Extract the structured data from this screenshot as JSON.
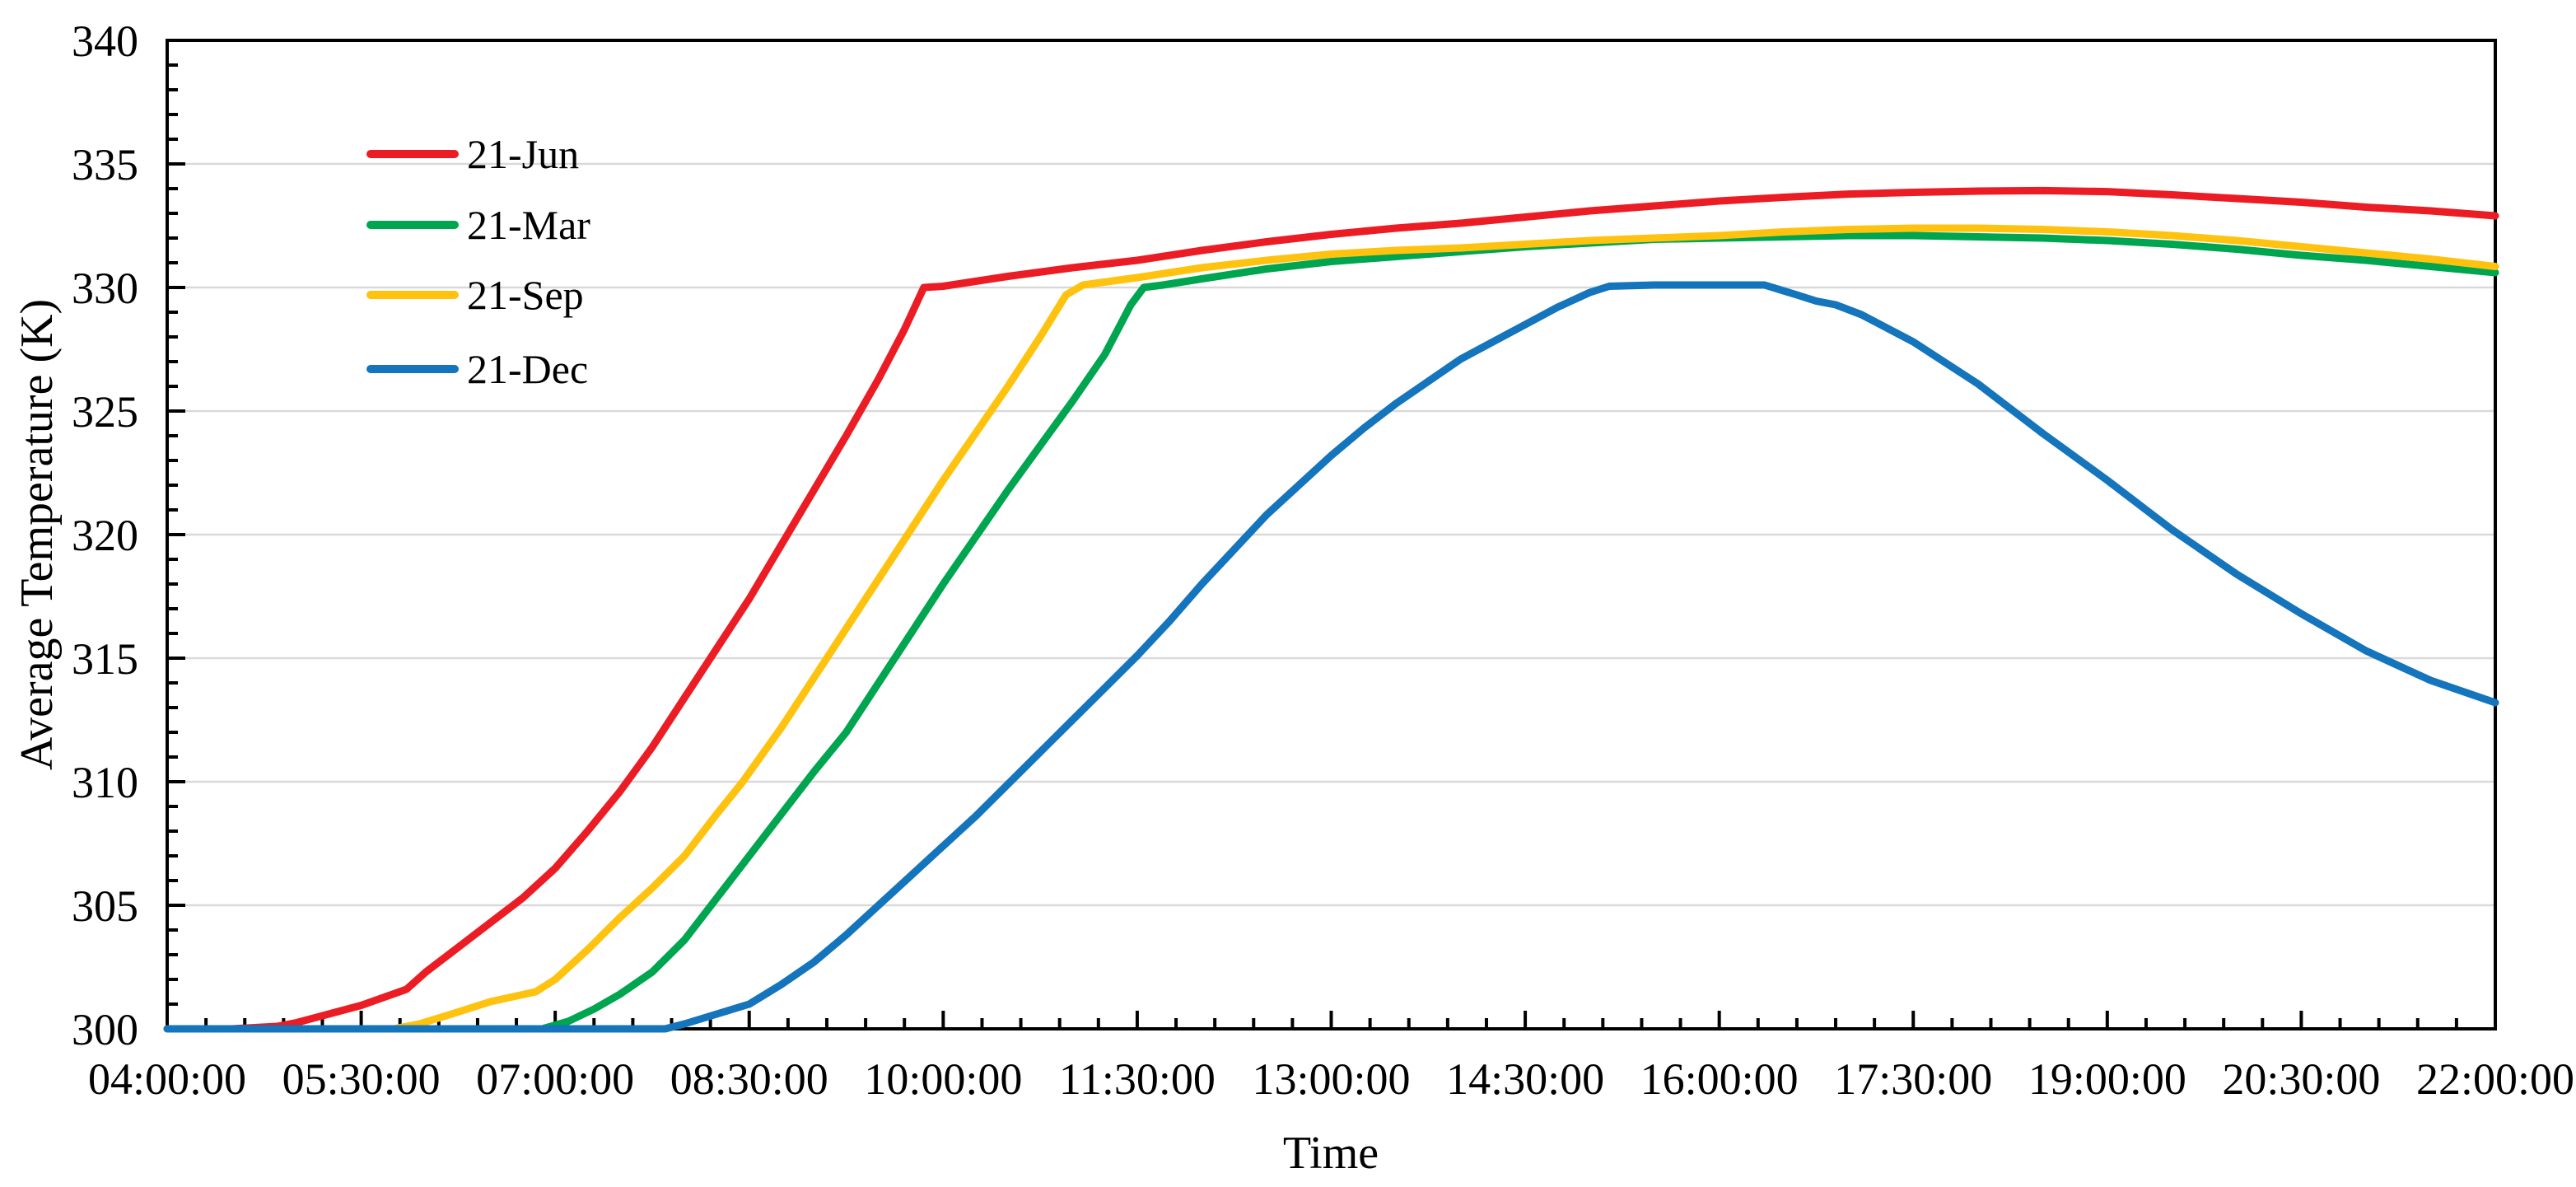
{
  "chart_data": {
    "type": "line",
    "title": "",
    "xlabel": "Time",
    "ylabel": "Average Temperature (K)",
    "grid": "horizontal-major-only",
    "legend_position": "top-left-inside",
    "frame_color": "#000000",
    "gridline_color": "#d9d9d9",
    "x_axis": {
      "unit": "time-of-day",
      "start_hour": 4,
      "end_hour": 22,
      "major_tick_interval_hours": 1.5,
      "minor_ticks_per_major": 5,
      "tick_labels": [
        "04:00:00",
        "05:30:00",
        "07:00:00",
        "08:30:00",
        "10:00:00",
        "11:30:00",
        "13:00:00",
        "14:30:00",
        "16:00:00",
        "17:30:00",
        "19:00:00",
        "20:30:00",
        "22:00:00"
      ]
    },
    "y_axis": {
      "min": 300,
      "max": 340,
      "major_step": 5,
      "minor_step": 1,
      "tick_labels": [
        "300",
        "305",
        "310",
        "315",
        "320",
        "325",
        "330",
        "335",
        "340"
      ]
    },
    "series": [
      {
        "name": "21-Jun",
        "color": "#ec1c24",
        "points": [
          [
            4.0,
            300
          ],
          [
            4.5,
            300
          ],
          [
            4.85,
            300.1
          ],
          [
            5.0,
            300.25
          ],
          [
            5.25,
            300.6
          ],
          [
            5.5,
            300.95
          ],
          [
            5.85,
            301.6
          ],
          [
            6.0,
            302.3
          ],
          [
            6.25,
            303.3
          ],
          [
            6.5,
            304.3
          ],
          [
            6.75,
            305.3
          ],
          [
            7.0,
            306.5
          ],
          [
            7.25,
            308.0
          ],
          [
            7.5,
            309.6
          ],
          [
            7.75,
            311.4
          ],
          [
            8.0,
            313.4
          ],
          [
            8.25,
            315.4
          ],
          [
            8.5,
            317.4
          ],
          [
            8.75,
            319.6
          ],
          [
            9.0,
            321.8
          ],
          [
            9.25,
            324.0
          ],
          [
            9.5,
            326.3
          ],
          [
            9.7,
            328.3
          ],
          [
            9.85,
            330.0
          ],
          [
            10.0,
            330.05
          ],
          [
            10.5,
            330.45
          ],
          [
            11.0,
            330.8
          ],
          [
            11.5,
            331.1
          ],
          [
            12.0,
            331.5
          ],
          [
            12.5,
            331.85
          ],
          [
            13.0,
            332.15
          ],
          [
            13.5,
            332.4
          ],
          [
            14.0,
            332.6
          ],
          [
            14.5,
            332.85
          ],
          [
            15.0,
            333.1
          ],
          [
            15.5,
            333.3
          ],
          [
            16.0,
            333.5
          ],
          [
            16.5,
            333.65
          ],
          [
            17.0,
            333.78
          ],
          [
            17.5,
            333.85
          ],
          [
            18.0,
            333.9
          ],
          [
            18.5,
            333.92
          ],
          [
            19.0,
            333.88
          ],
          [
            19.5,
            333.75
          ],
          [
            20.0,
            333.6
          ],
          [
            20.5,
            333.45
          ],
          [
            21.0,
            333.25
          ],
          [
            21.5,
            333.1
          ],
          [
            22.0,
            332.9
          ]
        ]
      },
      {
        "name": "21-Mar",
        "color": "#00a550",
        "points": [
          [
            4.0,
            300
          ],
          [
            6.9,
            300
          ],
          [
            7.1,
            300.3
          ],
          [
            7.3,
            300.8
          ],
          [
            7.5,
            301.4
          ],
          [
            7.75,
            302.3
          ],
          [
            8.0,
            303.6
          ],
          [
            8.25,
            305.3
          ],
          [
            8.5,
            307.0
          ],
          [
            8.75,
            308.7
          ],
          [
            9.0,
            310.4
          ],
          [
            9.25,
            312.0
          ],
          [
            9.5,
            314.0
          ],
          [
            9.75,
            316.0
          ],
          [
            10.0,
            318.0
          ],
          [
            10.25,
            319.9
          ],
          [
            10.5,
            321.8
          ],
          [
            10.75,
            323.6
          ],
          [
            11.0,
            325.4
          ],
          [
            11.25,
            327.3
          ],
          [
            11.45,
            329.3
          ],
          [
            11.55,
            330.0
          ],
          [
            11.7,
            330.1
          ],
          [
            12.0,
            330.35
          ],
          [
            12.5,
            330.75
          ],
          [
            13.0,
            331.05
          ],
          [
            13.5,
            331.25
          ],
          [
            14.0,
            331.45
          ],
          [
            14.5,
            331.65
          ],
          [
            15.0,
            331.8
          ],
          [
            15.5,
            331.95
          ],
          [
            16.0,
            332.0
          ],
          [
            16.5,
            332.05
          ],
          [
            17.0,
            332.1
          ],
          [
            17.5,
            332.1
          ],
          [
            18.0,
            332.05
          ],
          [
            18.5,
            332.0
          ],
          [
            19.0,
            331.9
          ],
          [
            19.5,
            331.75
          ],
          [
            20.0,
            331.55
          ],
          [
            20.5,
            331.3
          ],
          [
            21.0,
            331.1
          ],
          [
            21.5,
            330.85
          ],
          [
            22.0,
            330.6
          ]
        ]
      },
      {
        "name": "21-Sep",
        "color": "#ffc20e",
        "points": [
          [
            4.0,
            300
          ],
          [
            5.75,
            300
          ],
          [
            5.95,
            300.2
          ],
          [
            6.2,
            300.6
          ],
          [
            6.5,
            301.1
          ],
          [
            6.85,
            301.5
          ],
          [
            7.0,
            302.0
          ],
          [
            7.25,
            303.2
          ],
          [
            7.5,
            304.5
          ],
          [
            7.75,
            305.7
          ],
          [
            8.0,
            307.0
          ],
          [
            8.25,
            308.7
          ],
          [
            8.45,
            310.0
          ],
          [
            8.75,
            312.2
          ],
          [
            9.0,
            314.2
          ],
          [
            9.25,
            316.2
          ],
          [
            9.5,
            318.2
          ],
          [
            9.75,
            320.2
          ],
          [
            10.0,
            322.2
          ],
          [
            10.25,
            324.1
          ],
          [
            10.5,
            326.0
          ],
          [
            10.75,
            328.0
          ],
          [
            10.95,
            329.7
          ],
          [
            11.08,
            330.1
          ],
          [
            11.5,
            330.4
          ],
          [
            12.0,
            330.8
          ],
          [
            12.5,
            331.1
          ],
          [
            13.0,
            331.35
          ],
          [
            13.5,
            331.5
          ],
          [
            14.0,
            331.6
          ],
          [
            14.5,
            331.75
          ],
          [
            15.0,
            331.9
          ],
          [
            15.5,
            332.0
          ],
          [
            16.0,
            332.1
          ],
          [
            16.5,
            332.25
          ],
          [
            17.0,
            332.35
          ],
          [
            17.5,
            332.4
          ],
          [
            18.0,
            332.4
          ],
          [
            18.5,
            332.35
          ],
          [
            19.0,
            332.25
          ],
          [
            19.5,
            332.1
          ],
          [
            20.0,
            331.9
          ],
          [
            20.5,
            331.65
          ],
          [
            21.0,
            331.4
          ],
          [
            21.5,
            331.15
          ],
          [
            22.0,
            330.85
          ]
        ]
      },
      {
        "name": "21-Dec",
        "color": "#1474bc",
        "points": [
          [
            4.0,
            300
          ],
          [
            7.85,
            300
          ],
          [
            8.0,
            300.2
          ],
          [
            8.25,
            300.6
          ],
          [
            8.5,
            301.0
          ],
          [
            8.75,
            301.8
          ],
          [
            9.0,
            302.7
          ],
          [
            9.25,
            303.8
          ],
          [
            9.5,
            305.0
          ],
          [
            9.75,
            306.2
          ],
          [
            10.0,
            307.4
          ],
          [
            10.25,
            308.6
          ],
          [
            10.5,
            309.9
          ],
          [
            10.75,
            311.2
          ],
          [
            11.0,
            312.5
          ],
          [
            11.25,
            313.8
          ],
          [
            11.5,
            315.1
          ],
          [
            11.75,
            316.5
          ],
          [
            12.0,
            318.0
          ],
          [
            12.25,
            319.4
          ],
          [
            12.5,
            320.8
          ],
          [
            12.75,
            322.0
          ],
          [
            13.0,
            323.2
          ],
          [
            13.25,
            324.3
          ],
          [
            13.5,
            325.3
          ],
          [
            13.75,
            326.2
          ],
          [
            14.0,
            327.1
          ],
          [
            14.25,
            327.8
          ],
          [
            14.5,
            328.5
          ],
          [
            14.75,
            329.2
          ],
          [
            15.0,
            329.8
          ],
          [
            15.15,
            330.05
          ],
          [
            15.5,
            330.1
          ],
          [
            16.0,
            330.1
          ],
          [
            16.35,
            330.1
          ],
          [
            16.6,
            329.7
          ],
          [
            16.75,
            329.45
          ],
          [
            16.9,
            329.3
          ],
          [
            17.1,
            328.9
          ],
          [
            17.5,
            327.8
          ],
          [
            18.0,
            326.1
          ],
          [
            18.5,
            324.1
          ],
          [
            19.0,
            322.2
          ],
          [
            19.5,
            320.2
          ],
          [
            20.0,
            318.4
          ],
          [
            20.5,
            316.8
          ],
          [
            21.0,
            315.3
          ],
          [
            21.5,
            314.1
          ],
          [
            22.0,
            313.2
          ]
        ]
      }
    ]
  }
}
